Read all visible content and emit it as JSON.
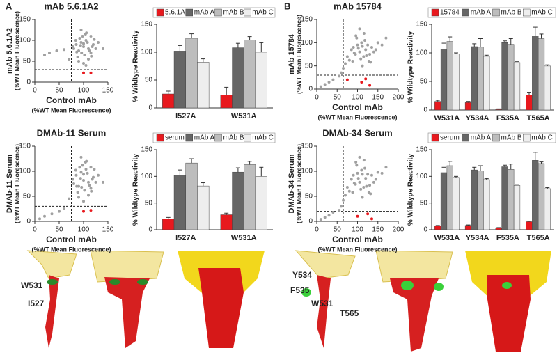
{
  "panel_labels": [
    "A",
    "B"
  ],
  "structure_labels": [
    "W531",
    "I527",
    "Y534",
    "F535",
    "W531",
    "T565"
  ],
  "chart_data": [
    {
      "type": "scatter",
      "title": "mAb 5.6.1A2",
      "x_label": "Control mAb",
      "x_label_sub": "(%WT Mean Fluorescence)",
      "y_label": "mAb 5.6.1A2",
      "y_label_sub": "(%WT Mean Fluorescence)",
      "xlim": [
        0,
        150
      ],
      "ylim": [
        0,
        150
      ],
      "xticks": [
        0,
        50,
        100,
        150
      ],
      "yticks": [
        0,
        50,
        100,
        150
      ],
      "ref_lines": {
        "x": 75,
        "y": 30
      },
      "series": [
        {
          "color": "#a0a0a0",
          "x": [
            80,
            85,
            90,
            95,
            100,
            105,
            110,
            115,
            120,
            88,
            92,
            98,
            102,
            108,
            112,
            118,
            125,
            84,
            96,
            104,
            94,
            100,
            110,
            130,
            78,
            86,
            106,
            116,
            122,
            140,
            60,
            45,
            30,
            20,
            70,
            90,
            100,
            105,
            95,
            115
          ],
          "y": [
            80,
            90,
            75,
            95,
            85,
            100,
            80,
            70,
            90,
            60,
            105,
            110,
            65,
            95,
            75,
            85,
            80,
            100,
            70,
            115,
            88,
            92,
            55,
            95,
            85,
            72,
            118,
            62,
            102,
            80,
            78,
            75,
            70,
            65,
            55,
            50,
            45,
            40,
            125,
            110
          ]
        },
        {
          "color": "#e8191e",
          "x": [
            100,
            115
          ],
          "y": [
            22,
            22
          ]
        }
      ]
    },
    {
      "type": "bar",
      "y_label": "% Wildtype Reactivity",
      "categories": [
        "I527A",
        "W531A"
      ],
      "ylim": [
        0,
        150
      ],
      "yticks": [
        0,
        50,
        100,
        150
      ],
      "series": [
        {
          "name": "5.6.1A2",
          "color": "#e8191e",
          "values": [
            25,
            23
          ],
          "errors": [
            5,
            14
          ]
        },
        {
          "name": "mAb A",
          "color": "#666666",
          "values": [
            102,
            108
          ],
          "errors": [
            10,
            8
          ]
        },
        {
          "name": "mAb B",
          "color": "#bdbdbd",
          "values": [
            125,
            122
          ],
          "errors": [
            8,
            6
          ]
        },
        {
          "name": "mAb C",
          "color": "#eeeeee",
          "values": [
            82,
            100
          ],
          "errors": [
            6,
            17
          ]
        }
      ]
    },
    {
      "type": "scatter",
      "title": "DMAb-11 Serum",
      "x_label": "Control mAb",
      "x_label_sub": "(%WT Mean Fluorescence)",
      "y_label": "DMAb-11 Serum",
      "y_label_sub": "(%WT Mean Fluorescence)",
      "xlim": [
        0,
        150
      ],
      "ylim": [
        0,
        150
      ],
      "xticks": [
        0,
        50,
        100,
        150
      ],
      "yticks": [
        0,
        50,
        100,
        150
      ],
      "ref_lines": {
        "x": 75,
        "y": 30
      },
      "series": [
        {
          "color": "#a0a0a0",
          "x": [
            80,
            85,
            90,
            95,
            100,
            105,
            110,
            115,
            120,
            88,
            92,
            98,
            102,
            108,
            112,
            118,
            125,
            84,
            96,
            104,
            94,
            100,
            110,
            130,
            78,
            86,
            106,
            116,
            122,
            140,
            10,
            20,
            35,
            50,
            60,
            70,
            90,
            100,
            95,
            115
          ],
          "y": [
            75,
            92,
            70,
            98,
            82,
            104,
            78,
            66,
            88,
            58,
            108,
            112,
            62,
            96,
            72,
            84,
            78,
            102,
            68,
            118,
            86,
            94,
            52,
            92,
            84,
            70,
            120,
            60,
            104,
            78,
            5,
            10,
            15,
            20,
            25,
            45,
            48,
            40,
            128,
            108
          ]
        },
        {
          "color": "#e8191e",
          "x": [
            100,
            115
          ],
          "y": [
            20,
            22
          ]
        }
      ]
    },
    {
      "type": "bar",
      "y_label": "% Wildtype Reactivity",
      "categories": [
        "I527A",
        "W531A"
      ],
      "ylim": [
        0,
        150
      ],
      "yticks": [
        0,
        50,
        100,
        150
      ],
      "series": [
        {
          "name": "serum",
          "color": "#e8191e",
          "values": [
            20,
            28
          ],
          "errors": [
            3,
            3
          ]
        },
        {
          "name": "mAb A",
          "color": "#666666",
          "values": [
            102,
            108
          ],
          "errors": [
            10,
            8
          ]
        },
        {
          "name": "mAb B",
          "color": "#bdbdbd",
          "values": [
            125,
            122
          ],
          "errors": [
            8,
            6
          ]
        },
        {
          "name": "mAb C",
          "color": "#eeeeee",
          "values": [
            82,
            100
          ],
          "errors": [
            6,
            17
          ]
        }
      ]
    },
    {
      "type": "scatter",
      "title": "mAb 15784",
      "x_label": "Control mAb",
      "x_label_sub": "(%WT Mean Fluorescence)",
      "y_label": "mAb 15784",
      "y_label_sub": "(%WT Mean Fluorescence)",
      "xlim": [
        0,
        200
      ],
      "ylim": [
        0,
        150
      ],
      "xticks": [
        0,
        50,
        100,
        150,
        200
      ],
      "yticks": [
        0,
        50,
        100,
        150
      ],
      "ref_lines": {
        "x": 65,
        "y": 30
      },
      "series": [
        {
          "color": "#a0a0a0",
          "x": [
            75,
            85,
            90,
            95,
            100,
            105,
            110,
            115,
            120,
            125,
            130,
            135,
            140,
            150,
            88,
            98,
            108,
            118,
            128,
            92,
            102,
            112,
            122,
            80,
            96,
            116,
            145,
            160,
            170,
            10,
            20,
            30,
            40,
            55,
            60,
            65,
            70,
            105,
            112,
            132
          ],
          "y": [
            70,
            85,
            90,
            75,
            95,
            80,
            100,
            70,
            85,
            95,
            75,
            90,
            80,
            100,
            60,
            110,
            65,
            105,
            60,
            78,
            88,
            92,
            72,
            62,
            115,
            120,
            85,
            95,
            110,
            5,
            10,
            15,
            20,
            28,
            35,
            45,
            55,
            130,
            50,
            58
          ]
        },
        {
          "color": "#e8191e",
          "x": [
            75,
            110,
            130,
            120
          ],
          "y": [
            20,
            15,
            8,
            22
          ]
        }
      ]
    },
    {
      "type": "bar",
      "y_label": "% Wildtype Reactivity",
      "categories": [
        "W531A",
        "Y534A",
        "F535A",
        "T565A"
      ],
      "ylim": [
        0,
        150
      ],
      "yticks": [
        0,
        50,
        100,
        150
      ],
      "series": [
        {
          "name": "15784",
          "color": "#e8191e",
          "values": [
            15,
            13,
            1,
            26
          ],
          "errors": [
            2,
            2,
            1,
            5
          ]
        },
        {
          "name": "mAb A",
          "color": "#666666",
          "values": [
            107,
            111,
            118,
            130
          ],
          "errors": [
            10,
            5,
            3,
            15
          ]
        },
        {
          "name": "mAb B",
          "color": "#bdbdbd",
          "values": [
            120,
            110,
            115,
            125
          ],
          "errors": [
            8,
            15,
            10,
            8
          ]
        },
        {
          "name": "mAb C",
          "color": "#eeeeee",
          "values": [
            98,
            94,
            83,
            77
          ],
          "errors": [
            2,
            2,
            2,
            2
          ]
        }
      ]
    },
    {
      "type": "scatter",
      "title": "DMAb-34 Serum",
      "x_label": "Control mAb",
      "x_label_sub": "(%WT Mean Fluorescence)",
      "y_label": "DMAb-34 Serum",
      "y_label_sub": "(%WT Mean Fluorescence)",
      "xlim": [
        0,
        200
      ],
      "ylim": [
        0,
        150
      ],
      "xticks": [
        0,
        50,
        100,
        150,
        200
      ],
      "yticks": [
        0,
        50,
        100,
        150
      ],
      "ref_lines": {
        "x": 65,
        "y": 20
      },
      "series": [
        {
          "color": "#a0a0a0",
          "x": [
            75,
            85,
            90,
            95,
            100,
            105,
            110,
            115,
            120,
            125,
            130,
            135,
            140,
            150,
            88,
            98,
            108,
            118,
            128,
            92,
            102,
            112,
            122,
            80,
            96,
            116,
            145,
            160,
            170,
            10,
            20,
            30,
            40,
            55,
            60,
            65,
            70,
            105,
            112,
            132
          ],
          "y": [
            68,
            84,
            92,
            74,
            96,
            78,
            102,
            68,
            86,
            94,
            72,
            92,
            78,
            98,
            58,
            112,
            64,
            106,
            58,
            76,
            86,
            94,
            70,
            60,
            118,
            122,
            84,
            96,
            108,
            4,
            8,
            12,
            18,
            22,
            30,
            42,
            52,
            128,
            48,
            55
          ]
        },
        {
          "color": "#e8191e",
          "x": [
            100,
            125,
            135
          ],
          "y": [
            10,
            15,
            5
          ]
        }
      ]
    },
    {
      "type": "bar",
      "y_label": "% Wildtype Reactivity",
      "categories": [
        "W531A",
        "Y534A",
        "F535A",
        "T565A"
      ],
      "ylim": [
        0,
        150
      ],
      "yticks": [
        0,
        50,
        100,
        150
      ],
      "series": [
        {
          "name": "serum",
          "color": "#e8191e",
          "values": [
            7,
            8,
            3,
            15
          ],
          "errors": [
            1,
            1,
            1,
            1
          ]
        },
        {
          "name": "mAb A",
          "color": "#666666",
          "values": [
            107,
            112,
            118,
            130
          ],
          "errors": [
            10,
            5,
            3,
            15
          ]
        },
        {
          "name": "mAb B",
          "color": "#bdbdbd",
          "values": [
            120,
            110,
            113,
            124
          ],
          "errors": [
            8,
            10,
            10,
            3
          ]
        },
        {
          "name": "mAb C",
          "color": "#eeeeee",
          "values": [
            98,
            94,
            83,
            77
          ],
          "errors": [
            2,
            2,
            2,
            2
          ]
        }
      ]
    }
  ]
}
